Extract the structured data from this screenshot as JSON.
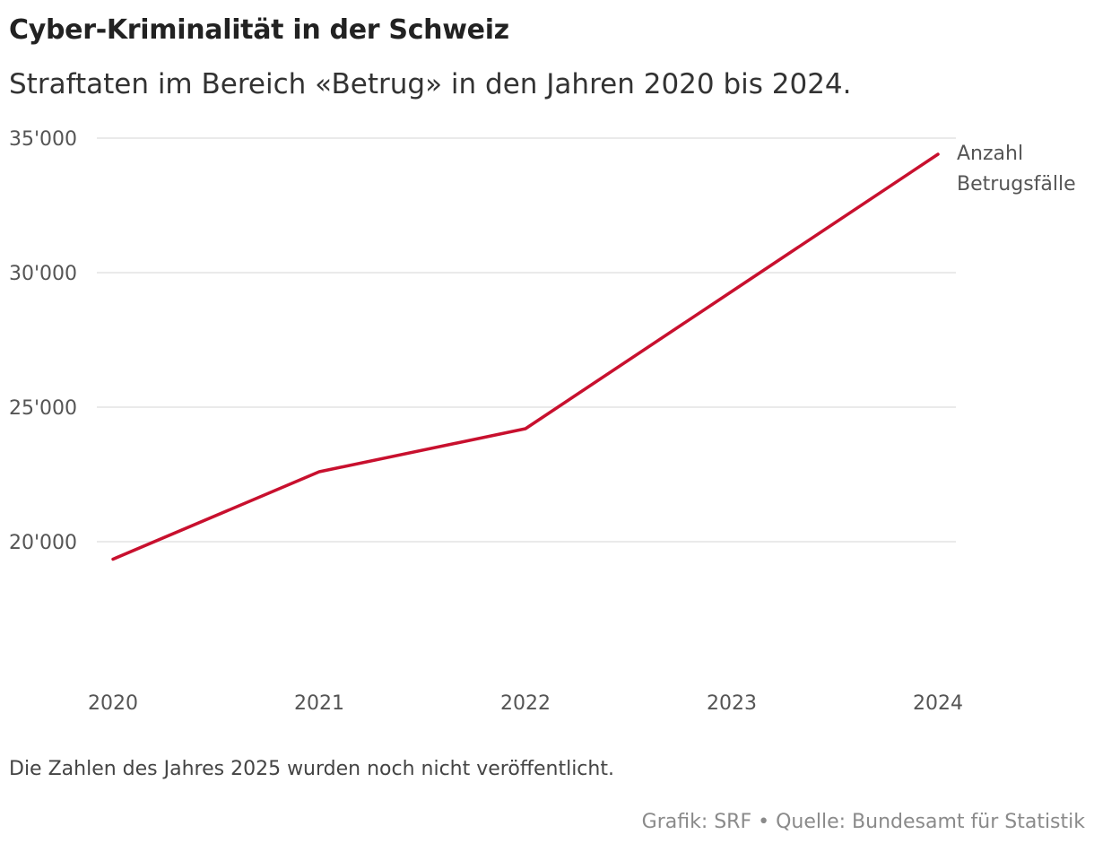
{
  "header": {
    "title": "Cyber-Kriminalität in der Schweiz",
    "subtitle": "Straftaten im Bereich «Betrug» in den Jahren 2020 bis 2024."
  },
  "footer": {
    "note": "Die Zahlen des Jahres 2025 wurden noch nicht veröffentlicht.",
    "source": "Grafik: SRF • Quelle: Bundesamt für Statistik"
  },
  "colors": {
    "line": "#c8102e",
    "grid": "#e3e3e3"
  },
  "chart_data": {
    "type": "line",
    "title": "Cyber-Kriminalität in der Schweiz",
    "subtitle": "Straftaten im Bereich «Betrug» in den Jahren 2020 bis 2024.",
    "xlabel": "",
    "ylabel": "",
    "categories": [
      "2020",
      "2021",
      "2022",
      "2023",
      "2024"
    ],
    "series": [
      {
        "name": "Anzahl Betrugsfälle",
        "name_lines": [
          "Anzahl",
          "Betrugsfälle"
        ],
        "values": [
          19350,
          22600,
          24200,
          29300,
          34400
        ]
      }
    ],
    "y_ticks": [
      20000,
      25000,
      30000,
      35000
    ],
    "y_tick_labels": [
      "20'000",
      "25'000",
      "30'000",
      "35'000"
    ],
    "ylim": [
      14800,
      35000
    ],
    "grid": true,
    "legend": "direct label at line end"
  }
}
